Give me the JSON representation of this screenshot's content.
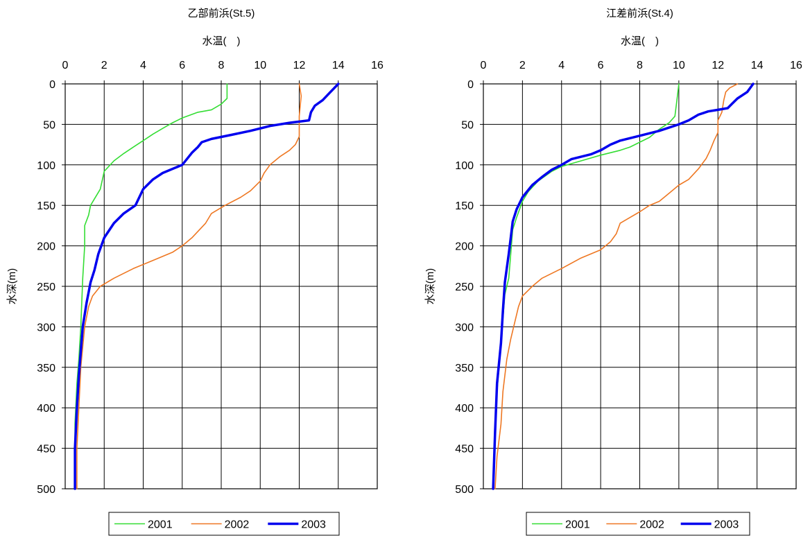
{
  "chart_data": [
    {
      "type": "line",
      "title": "乙部前浜(St.5)",
      "xlabel": "水温(　)",
      "ylabel": "水深(m)",
      "xlim": [
        0,
        16
      ],
      "ylim": [
        0,
        500
      ],
      "y_inverted": true,
      "x_ticks": [
        0,
        2,
        4,
        6,
        8,
        10,
        12,
        14,
        16
      ],
      "y_ticks": [
        0,
        50,
        100,
        150,
        200,
        250,
        300,
        350,
        400,
        450,
        500
      ],
      "grid": true,
      "legend_position": "bottom",
      "series": [
        {
          "name": "2001",
          "color": "#33dd33",
          "points": [
            [
              8.3,
              0
            ],
            [
              8.3,
              18
            ],
            [
              8.0,
              25
            ],
            [
              7.5,
              32
            ],
            [
              6.8,
              35
            ],
            [
              6.0,
              42
            ],
            [
              5.5,
              48
            ],
            [
              5.0,
              55
            ],
            [
              4.5,
              62
            ],
            [
              4.0,
              70
            ],
            [
              3.5,
              78
            ],
            [
              3.0,
              86
            ],
            [
              2.5,
              95
            ],
            [
              2.0,
              108
            ],
            [
              1.8,
              130
            ],
            [
              1.3,
              150
            ],
            [
              1.2,
              162
            ],
            [
              1.0,
              175
            ],
            [
              1.0,
              200
            ],
            [
              0.9,
              240
            ],
            [
              0.8,
              300
            ],
            [
              0.7,
              340
            ],
            [
              0.6,
              370
            ],
            [
              0.5,
              420
            ],
            [
              0.5,
              500
            ]
          ]
        },
        {
          "name": "2002",
          "color": "#ee7722",
          "points": [
            [
              12.0,
              0
            ],
            [
              12.1,
              15
            ],
            [
              12.0,
              40
            ],
            [
              12.0,
              65
            ],
            [
              11.8,
              75
            ],
            [
              11.5,
              82
            ],
            [
              11.0,
              90
            ],
            [
              10.5,
              100
            ],
            [
              10.2,
              110
            ],
            [
              10.0,
              120
            ],
            [
              9.5,
              132
            ],
            [
              9.0,
              140
            ],
            [
              8.2,
              150
            ],
            [
              7.5,
              160
            ],
            [
              7.2,
              172
            ],
            [
              6.5,
              190
            ],
            [
              6.0,
              200
            ],
            [
              5.5,
              208
            ],
            [
              4.5,
              218
            ],
            [
              3.5,
              228
            ],
            [
              2.5,
              240
            ],
            [
              1.8,
              250
            ],
            [
              1.4,
              262
            ],
            [
              1.2,
              275
            ],
            [
              1.0,
              300
            ],
            [
              0.8,
              350
            ],
            [
              0.7,
              400
            ],
            [
              0.6,
              450
            ],
            [
              0.6,
              500
            ]
          ]
        },
        {
          "name": "2003",
          "color": "#0000ee",
          "points": [
            [
              14.0,
              0
            ],
            [
              13.6,
              10
            ],
            [
              13.2,
              20
            ],
            [
              12.8,
              27
            ],
            [
              12.6,
              35
            ],
            [
              12.5,
              45
            ],
            [
              11.5,
              48
            ],
            [
              10.5,
              52
            ],
            [
              9.5,
              58
            ],
            [
              8.5,
              63
            ],
            [
              7.5,
              68
            ],
            [
              7.0,
              72
            ],
            [
              6.8,
              78
            ],
            [
              6.5,
              85
            ],
            [
              6.0,
              100
            ],
            [
              5.0,
              110
            ],
            [
              4.5,
              118
            ],
            [
              4.0,
              130
            ],
            [
              3.8,
              140
            ],
            [
              3.6,
              150
            ],
            [
              3.0,
              160
            ],
            [
              2.5,
              172
            ],
            [
              2.0,
              190
            ],
            [
              1.7,
              210
            ],
            [
              1.5,
              230
            ],
            [
              1.3,
              245
            ],
            [
              1.1,
              270
            ],
            [
              0.9,
              300
            ],
            [
              0.8,
              330
            ],
            [
              0.7,
              360
            ],
            [
              0.6,
              400
            ],
            [
              0.5,
              450
            ],
            [
              0.5,
              500
            ]
          ]
        }
      ]
    },
    {
      "type": "line",
      "title": "江差前浜(St.4)",
      "xlabel": "水温(　)",
      "ylabel": "水深(m)",
      "xlim": [
        0,
        16
      ],
      "ylim": [
        0,
        500
      ],
      "y_inverted": true,
      "x_ticks": [
        0,
        2,
        4,
        6,
        8,
        10,
        12,
        14,
        16
      ],
      "y_ticks": [
        0,
        50,
        100,
        150,
        200,
        250,
        300,
        350,
        400,
        450,
        500
      ],
      "grid": true,
      "legend_position": "bottom",
      "series": [
        {
          "name": "2001",
          "color": "#33dd33",
          "points": [
            [
              10.0,
              0
            ],
            [
              9.9,
              20
            ],
            [
              9.8,
              40
            ],
            [
              9.5,
              48
            ],
            [
              9.0,
              56
            ],
            [
              8.5,
              66
            ],
            [
              8.0,
              72
            ],
            [
              7.5,
              78
            ],
            [
              7.0,
              82
            ],
            [
              6.5,
              85
            ],
            [
              6.0,
              88
            ],
            [
              5.0,
              95
            ],
            [
              4.0,
              102
            ],
            [
              3.5,
              108
            ],
            [
              2.8,
              120
            ],
            [
              2.3,
              133
            ],
            [
              2.0,
              145
            ],
            [
              1.7,
              165
            ],
            [
              1.5,
              180
            ],
            [
              1.4,
              210
            ],
            [
              1.3,
              240
            ],
            [
              1.1,
              260
            ],
            [
              1.0,
              290
            ],
            [
              0.9,
              320
            ],
            [
              0.7,
              380
            ],
            [
              0.6,
              440
            ],
            [
              0.5,
              500
            ]
          ]
        },
        {
          "name": "2002",
          "color": "#ee7722",
          "points": [
            [
              13.0,
              0
            ],
            [
              12.6,
              5
            ],
            [
              12.4,
              10
            ],
            [
              12.3,
              20
            ],
            [
              12.2,
              35
            ],
            [
              12.0,
              45
            ],
            [
              12.0,
              60
            ],
            [
              11.8,
              70
            ],
            [
              11.6,
              82
            ],
            [
              11.4,
              92
            ],
            [
              11.0,
              105
            ],
            [
              10.5,
              118
            ],
            [
              10.0,
              125
            ],
            [
              9.5,
              135
            ],
            [
              9.0,
              145
            ],
            [
              8.5,
              150
            ],
            [
              8.0,
              158
            ],
            [
              7.5,
              165
            ],
            [
              7.0,
              172
            ],
            [
              6.8,
              185
            ],
            [
              6.5,
              195
            ],
            [
              6.0,
              205
            ],
            [
              5.0,
              215
            ],
            [
              4.0,
              228
            ],
            [
              3.0,
              240
            ],
            [
              2.5,
              250
            ],
            [
              2.0,
              262
            ],
            [
              1.8,
              275
            ],
            [
              1.6,
              295
            ],
            [
              1.4,
              315
            ],
            [
              1.2,
              340
            ],
            [
              1.0,
              380
            ],
            [
              0.9,
              420
            ],
            [
              0.7,
              460
            ],
            [
              0.6,
              500
            ]
          ]
        },
        {
          "name": "2003",
          "color": "#0000ee",
          "points": [
            [
              13.8,
              0
            ],
            [
              13.5,
              10
            ],
            [
              13.0,
              18
            ],
            [
              12.7,
              25
            ],
            [
              12.5,
              30
            ],
            [
              12.0,
              32
            ],
            [
              11.5,
              34
            ],
            [
              11.0,
              38
            ],
            [
              10.5,
              45
            ],
            [
              10.0,
              50
            ],
            [
              9.0,
              58
            ],
            [
              8.0,
              64
            ],
            [
              7.0,
              70
            ],
            [
              6.5,
              75
            ],
            [
              6.0,
              82
            ],
            [
              5.5,
              87
            ],
            [
              4.5,
              93
            ],
            [
              4.0,
              100
            ],
            [
              3.5,
              106
            ],
            [
              3.0,
              115
            ],
            [
              2.5,
              125
            ],
            [
              2.0,
              140
            ],
            [
              1.7,
              155
            ],
            [
              1.5,
              170
            ],
            [
              1.4,
              190
            ],
            [
              1.3,
              210
            ],
            [
              1.1,
              245
            ],
            [
              1.0,
              280
            ],
            [
              0.9,
              320
            ],
            [
              0.7,
              370
            ],
            [
              0.6,
              430
            ],
            [
              0.5,
              500
            ]
          ]
        }
      ]
    }
  ]
}
